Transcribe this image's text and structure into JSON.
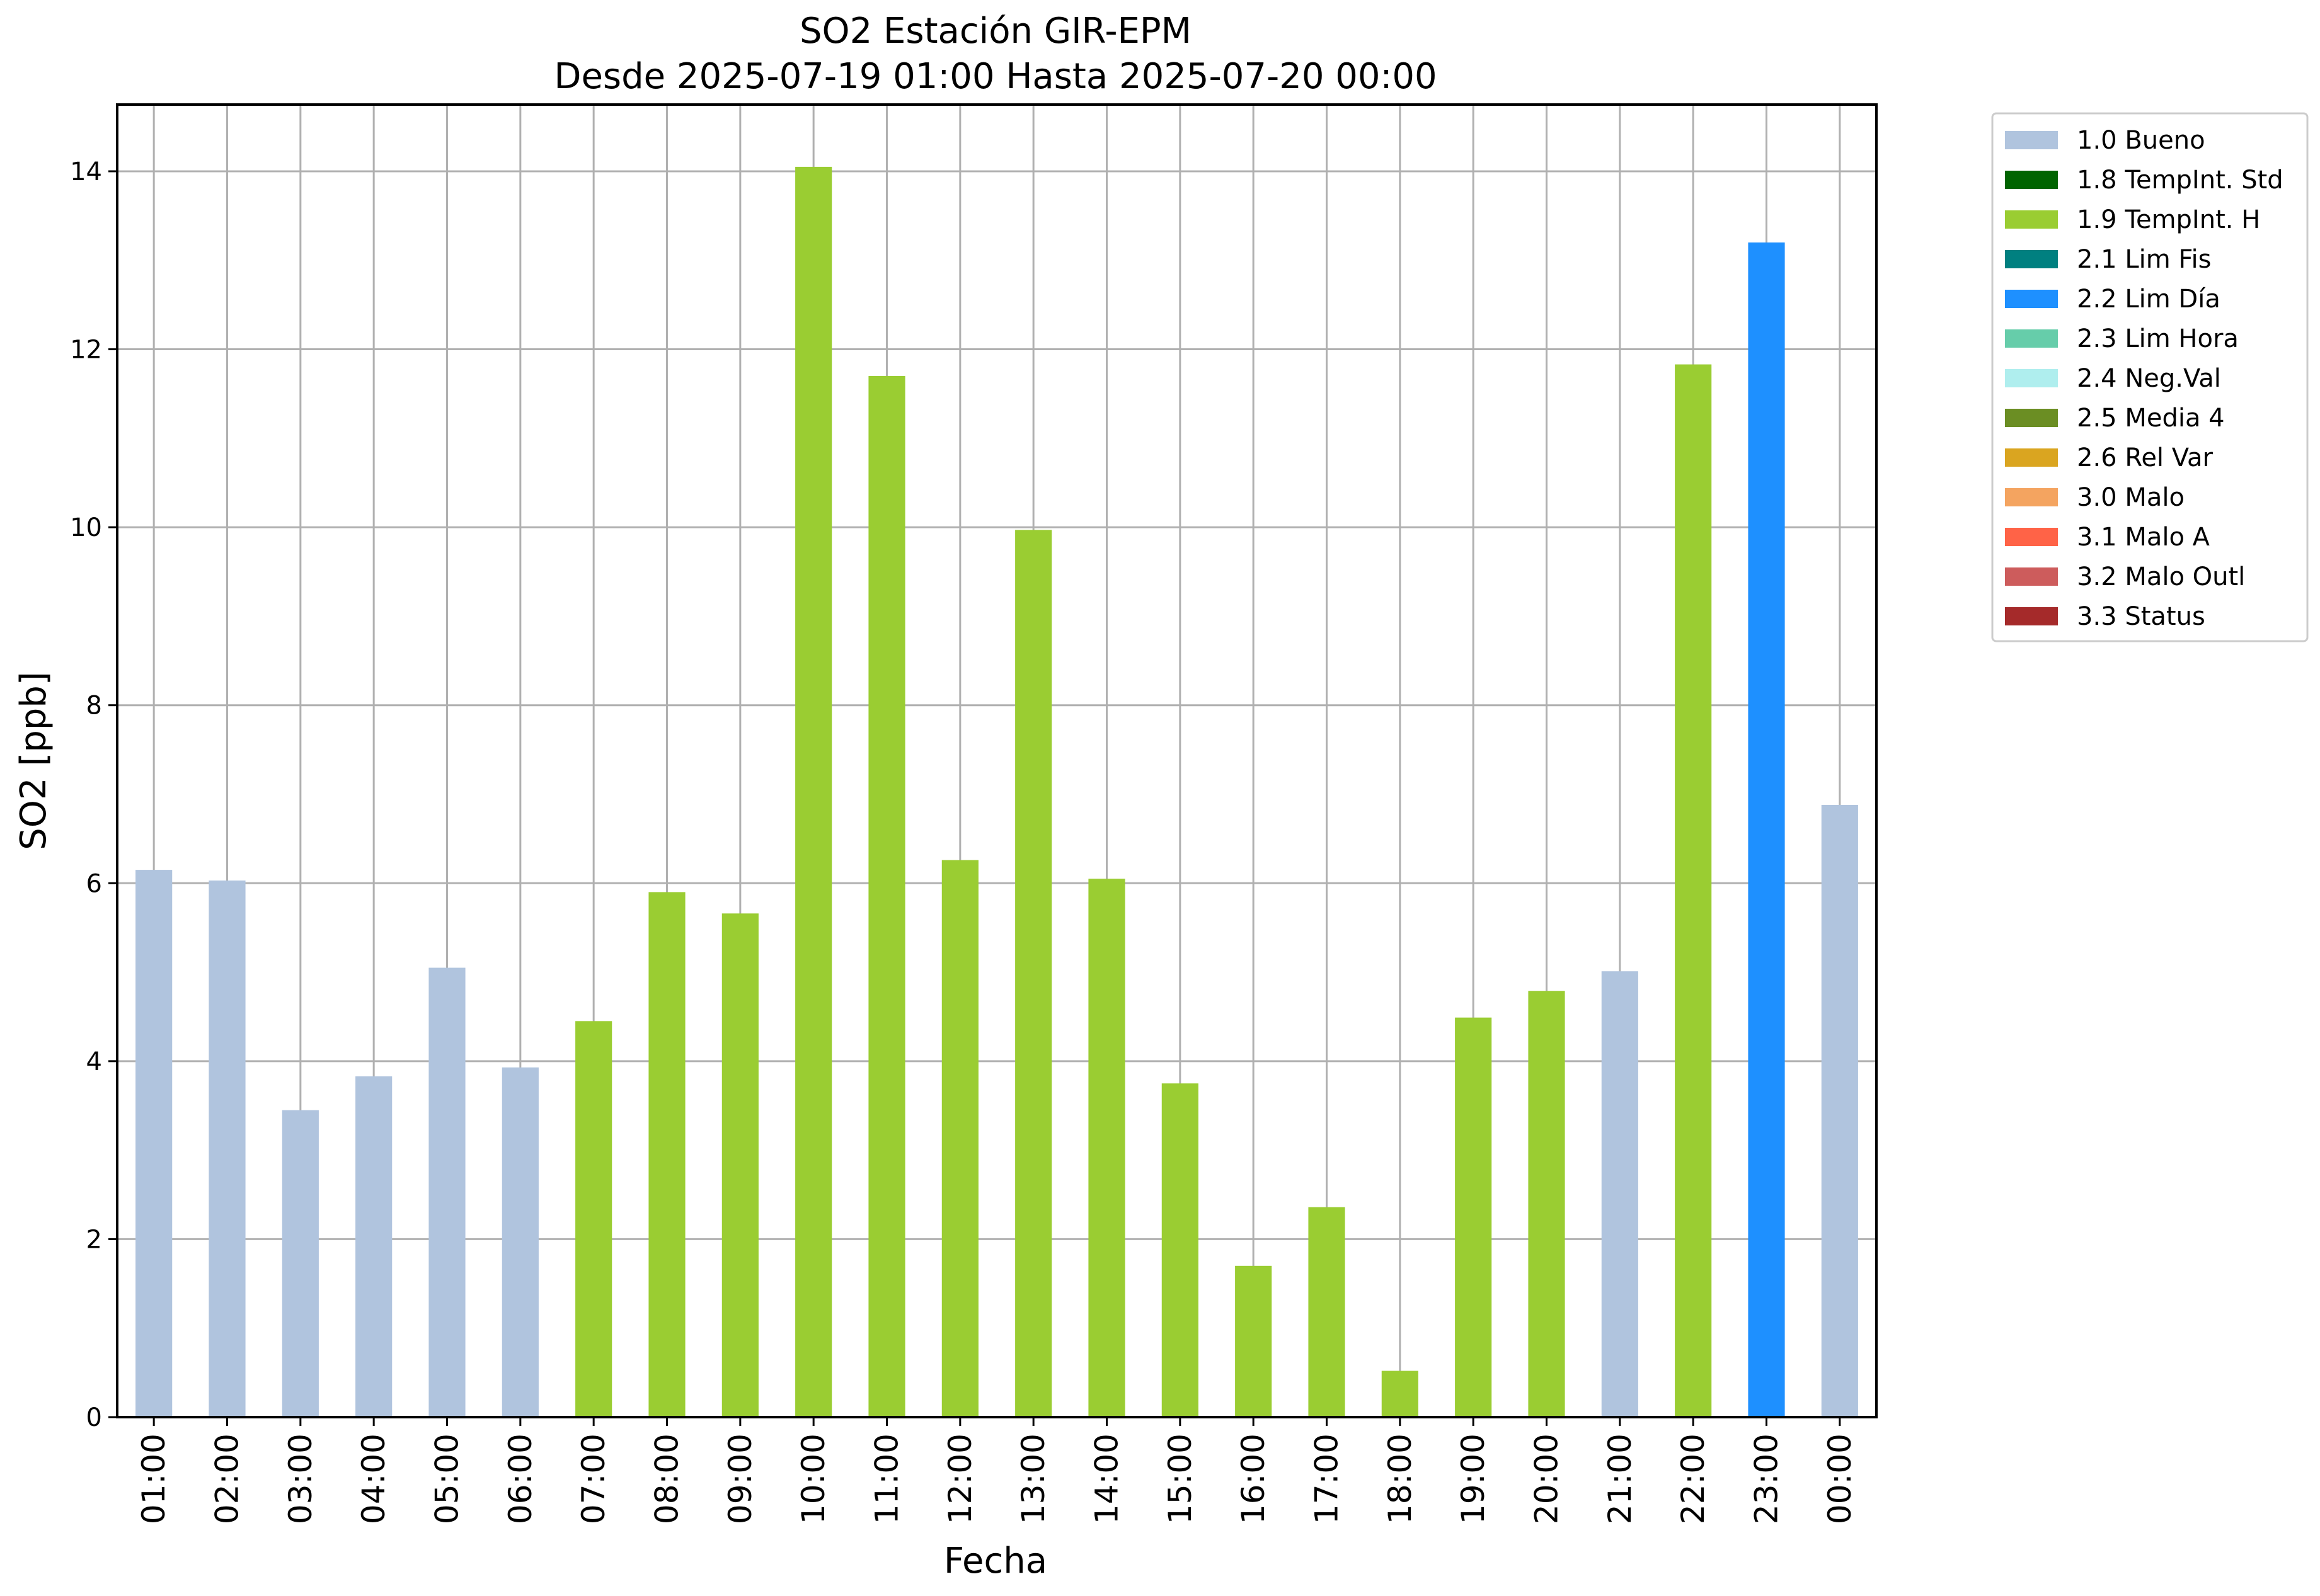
{
  "chart_data": {
    "type": "bar",
    "title": "SO2 Estación GIR-EPM",
    "subtitle": "Desde 2025-07-19 01:00 Hasta 2025-07-20 00:00",
    "xlabel": "Fecha",
    "ylabel": "SO2 [ppb]",
    "ylim": [
      0,
      14.75
    ],
    "yticks": [
      0,
      2,
      4,
      6,
      8,
      10,
      12,
      14
    ],
    "grid": true,
    "legend_position": "outside-top-right",
    "categories": [
      "01:00",
      "02:00",
      "03:00",
      "04:00",
      "05:00",
      "06:00",
      "07:00",
      "08:00",
      "09:00",
      "10:00",
      "11:00",
      "12:00",
      "13:00",
      "14:00",
      "15:00",
      "16:00",
      "17:00",
      "18:00",
      "19:00",
      "20:00",
      "21:00",
      "22:00",
      "23:00",
      "00:00"
    ],
    "values": [
      6.15,
      6.03,
      3.45,
      3.83,
      5.05,
      3.93,
      4.45,
      5.9,
      5.66,
      14.05,
      11.7,
      6.26,
      9.97,
      6.05,
      3.75,
      1.7,
      2.36,
      0.52,
      4.49,
      4.79,
      5.01,
      11.83,
      13.2,
      6.88
    ],
    "flags": [
      "1.0 Bueno",
      "1.0 Bueno",
      "1.0 Bueno",
      "1.0 Bueno",
      "1.0 Bueno",
      "1.0 Bueno",
      "1.9 TempInt. H",
      "1.9 TempInt. H",
      "1.9 TempInt. H",
      "1.9 TempInt. H",
      "1.9 TempInt. H",
      "1.9 TempInt. H",
      "1.9 TempInt. H",
      "1.9 TempInt. H",
      "1.9 TempInt. H",
      "1.9 TempInt. H",
      "1.9 TempInt. H",
      "1.9 TempInt. H",
      "1.9 TempInt. H",
      "1.9 TempInt. H",
      "1.0 Bueno",
      "1.9 TempInt. H",
      "2.2 Lim Día",
      "1.0 Bueno"
    ],
    "legend": [
      {
        "label": "1.0 Bueno",
        "color": "#b0c4de"
      },
      {
        "label": "1.8 TempInt. Std",
        "color": "#006400"
      },
      {
        "label": "1.9 TempInt. H",
        "color": "#9acd32"
      },
      {
        "label": "2.1 Lim Fis",
        "color": "#008080"
      },
      {
        "label": "2.2 Lim Día",
        "color": "#1e90ff"
      },
      {
        "label": "2.3 Lim Hora",
        "color": "#66cdaa"
      },
      {
        "label": "2.4 Neg.Val",
        "color": "#afeeee"
      },
      {
        "label": "2.5 Media 4",
        "color": "#6b8e23"
      },
      {
        "label": "2.6 Rel Var",
        "color": "#daa520"
      },
      {
        "label": "3.0 Malo",
        "color": "#f4a460"
      },
      {
        "label": "3.1 Malo A",
        "color": "#ff6347"
      },
      {
        "label": "3.2 Malo Outl",
        "color": "#cd5c5c"
      },
      {
        "label": "3.3 Status",
        "color": "#a52a2a"
      }
    ]
  }
}
